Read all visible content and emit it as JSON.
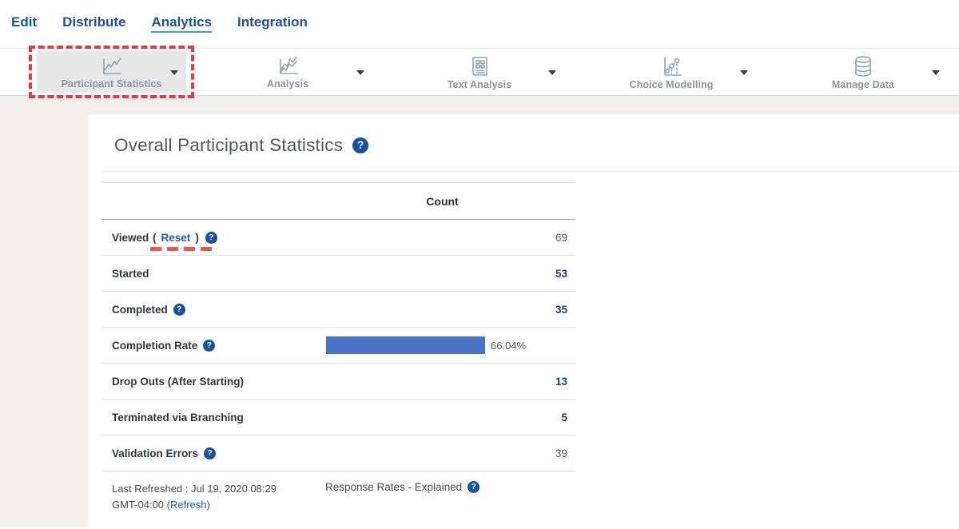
{
  "nav": {
    "items": [
      {
        "label": "Edit",
        "active": false
      },
      {
        "label": "Distribute",
        "active": false
      },
      {
        "label": "Analytics",
        "active": true
      },
      {
        "label": "Integration",
        "active": false
      }
    ]
  },
  "toolbar": {
    "items": [
      {
        "label": "Participant Statistics",
        "icon": "line-chart",
        "selected": true,
        "annotated": true
      },
      {
        "label": "Analysis",
        "icon": "multi-line-chart",
        "selected": false
      },
      {
        "label": "Text Analysis",
        "icon": "document",
        "selected": false
      },
      {
        "label": "Choice Modelling",
        "icon": "scatter-chart",
        "selected": false
      },
      {
        "label": "Manage Data",
        "icon": "database",
        "selected": false
      }
    ]
  },
  "main": {
    "title": "Overall Participant Statistics",
    "title_help_icon": "?",
    "table": {
      "count_header": "Count",
      "rows": [
        {
          "label": "Viewed",
          "reset_link": "Reset",
          "has_help": true,
          "value": "69",
          "value_style": "gray",
          "annotated_underline": true
        },
        {
          "label": "Started",
          "has_help": false,
          "value": "53",
          "value_style": "blue"
        },
        {
          "label": "Completed",
          "has_help": true,
          "value": "35",
          "value_style": "blue"
        },
        {
          "label": "Completion Rate",
          "has_help": true,
          "bar_percent": 66.04,
          "bar_label": "66.04%"
        },
        {
          "label": "Drop Outs (After Starting)",
          "has_help": false,
          "value": "13",
          "value_style": "blue"
        },
        {
          "label": "Terminated via Branching",
          "has_help": false,
          "value": "5",
          "value_style": "blue"
        },
        {
          "label": "Validation Errors",
          "has_help": true,
          "value": "39",
          "value_style": "gray"
        }
      ]
    },
    "footer": {
      "last_refreshed_prefix": "Last Refreshed : Jul 19, 2020 08:29 GMT-04:00 (",
      "refresh_link": "Refresh",
      "last_refreshed_suffix": ")",
      "response_rates_label": "Response Rates - Explained",
      "response_rates_has_help": true
    }
  },
  "colors": {
    "nav_blue": "#1f4fa3",
    "active_underline_blue": "#4b9bd8",
    "annotation_red": "#e13b47",
    "underline_red": "#f0544c",
    "value_blue": "#1e3c8c",
    "link_blue": "#1d5bbf",
    "bar_blue": "#4c73c5",
    "help_icon_blue": "#1552a4",
    "page_bg_gray": "#f0efee",
    "selected_item_bg": "#e8e7e7"
  }
}
